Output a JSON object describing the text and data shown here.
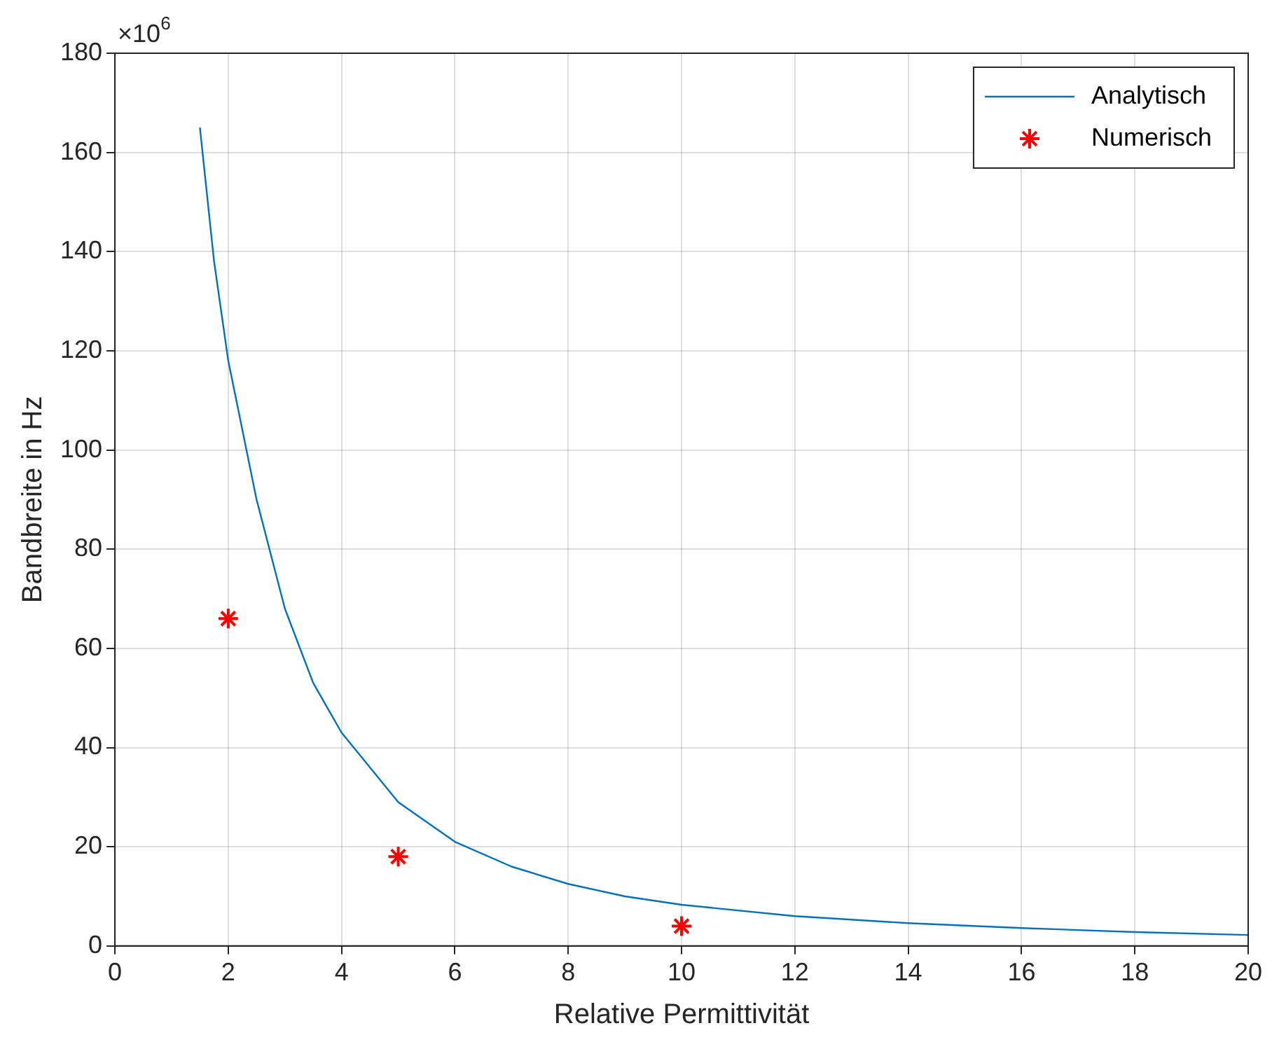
{
  "chart_data": {
    "type": "line",
    "xlabel": "Relative Permittivität",
    "ylabel": "Bandbreite in Hz",
    "annotations": [
      "×10$^{6}$"
    ],
    "xlim": [
      0,
      20
    ],
    "xticks": [
      0,
      2,
      4,
      6,
      8,
      10,
      12,
      14,
      16,
      18,
      20
    ],
    "ylim": [
      0,
      180
    ],
    "yticks": [
      0,
      20,
      40,
      60,
      80,
      100,
      120,
      140,
      160,
      180
    ],
    "grid": true,
    "legend": "top right",
    "series": [
      {
        "name": "Analytisch",
        "type": "line",
        "color": "#0072bd",
        "marker": "none",
        "x": [
          1.5,
          1.75,
          2,
          2.5,
          3,
          3.5,
          4,
          5,
          6,
          7,
          8,
          9,
          10,
          12,
          14,
          16,
          18,
          20
        ],
        "values": [
          165,
          138,
          118,
          90,
          68,
          53,
          43,
          29,
          21,
          16,
          12.5,
          10,
          8.3,
          6,
          4.6,
          3.6,
          2.8,
          2.2
        ]
      },
      {
        "name": "Numerisch",
        "type": "scatter",
        "color": "#ff0000",
        "marker": "cross",
        "x": [
          2,
          5,
          10
        ],
        "values": [
          66,
          18,
          4
        ]
      }
    ]
  }
}
